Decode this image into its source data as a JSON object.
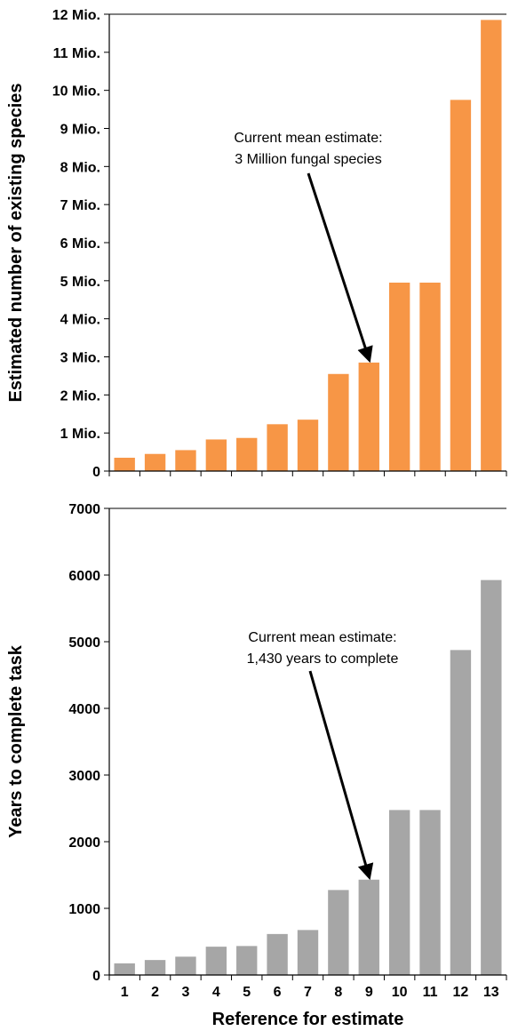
{
  "chart_data": [
    {
      "type": "bar",
      "categories": [
        "1",
        "2",
        "3",
        "4",
        "5",
        "6",
        "7",
        "8",
        "9",
        "10",
        "11",
        "12",
        "13"
      ],
      "values": [
        0.35,
        0.45,
        0.55,
        0.83,
        0.87,
        1.23,
        1.35,
        2.55,
        2.85,
        4.95,
        4.95,
        9.75,
        11.85
      ],
      "unit": "million species",
      "ylabel": "Estimated number of existing species",
      "xlabel": "",
      "ylim": [
        0,
        12
      ],
      "yticks": [
        0,
        1,
        2,
        3,
        4,
        5,
        6,
        7,
        8,
        9,
        10,
        11,
        12
      ],
      "ytick_labels": [
        "0",
        "1 Mio.",
        "2 Mio.",
        "3 Mio.",
        "4 Mio.",
        "5 Mio.",
        "6 Mio.",
        "7 Mio.",
        "8 Mio.",
        "9 Mio.",
        "10 Mio.",
        "11 Mio.",
        "12 Mio."
      ],
      "bar_color": "#F79646",
      "grid": false,
      "annotation": {
        "lines": [
          "Current mean estimate:",
          "3 Million fungal species"
        ],
        "arrow_to_category": "9"
      }
    },
    {
      "type": "bar",
      "categories": [
        "1",
        "2",
        "3",
        "4",
        "5",
        "6",
        "7",
        "8",
        "9",
        "10",
        "11",
        "12",
        "13"
      ],
      "values": [
        175,
        225,
        275,
        425,
        435,
        615,
        675,
        1275,
        1430,
        2475,
        2475,
        4875,
        5925
      ],
      "ylabel": "Years to complete task",
      "xlabel": "Reference for estimate",
      "ylim": [
        0,
        7000
      ],
      "yticks": [
        0,
        1000,
        2000,
        3000,
        4000,
        5000,
        6000,
        7000
      ],
      "ytick_labels": [
        "0",
        "1000",
        "2000",
        "3000",
        "4000",
        "5000",
        "6000",
        "7000"
      ],
      "bar_color": "#A6A6A6",
      "grid": false,
      "annotation": {
        "lines": [
          "Current mean estimate:",
          "1,430 years to complete"
        ],
        "arrow_to_category": "9"
      }
    }
  ]
}
